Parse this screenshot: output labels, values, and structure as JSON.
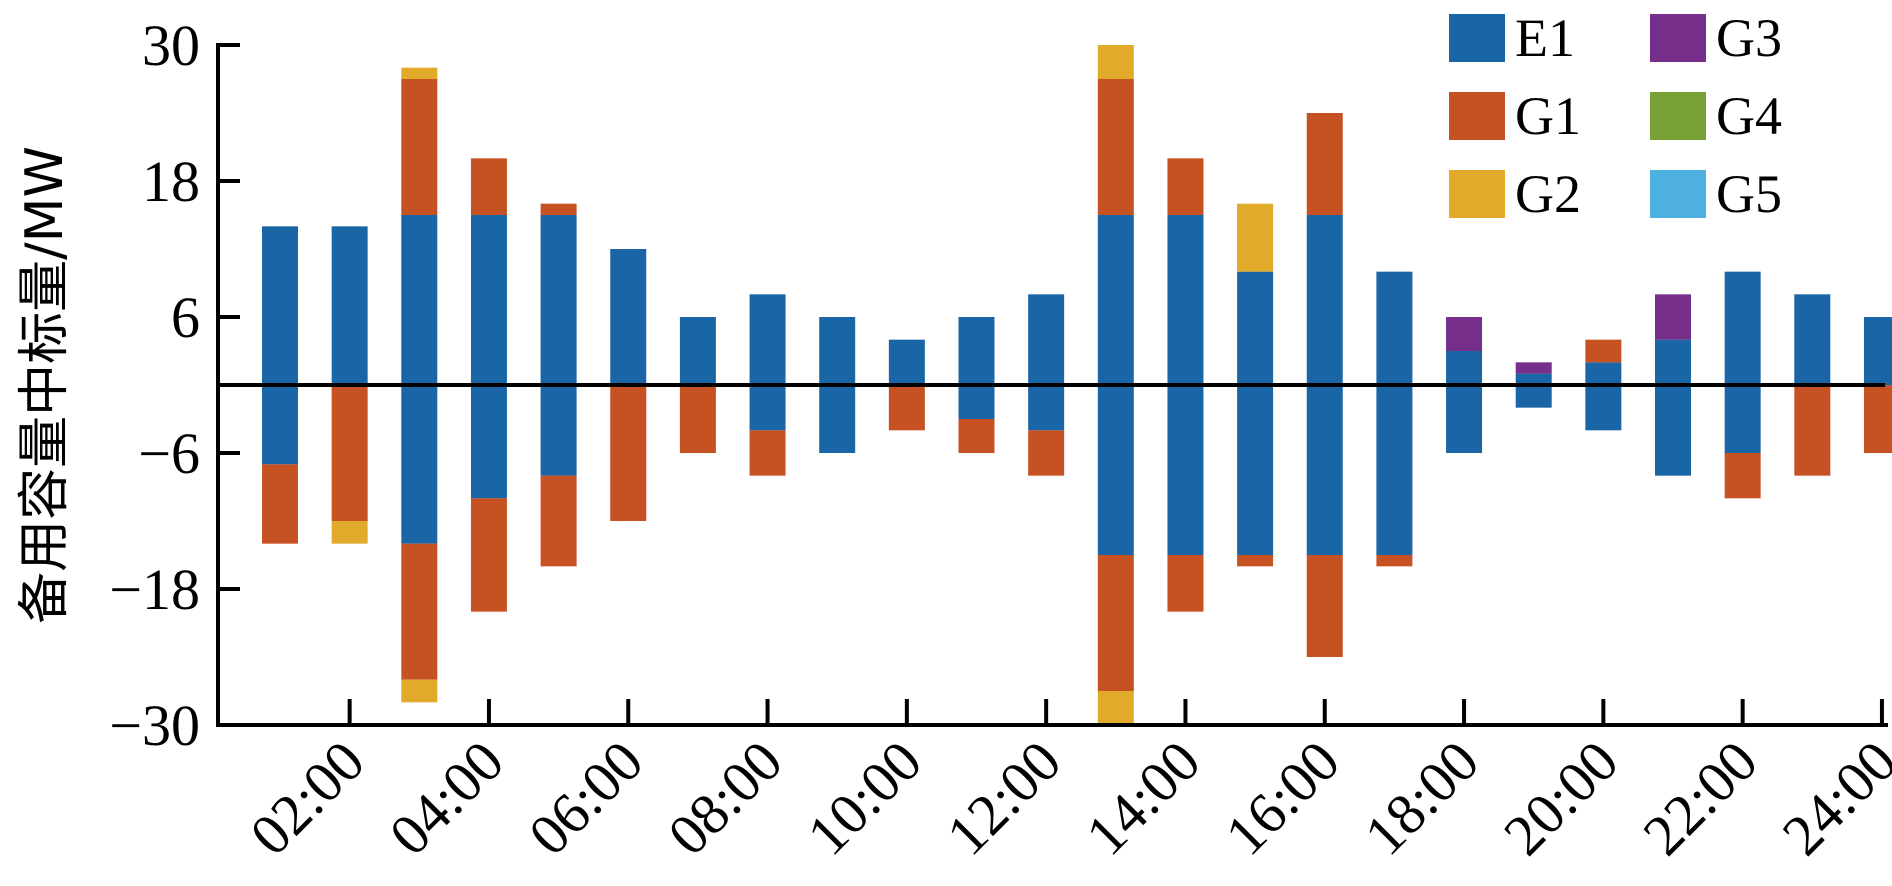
{
  "chart_data": {
    "type": "bar",
    "stacked": true,
    "title": "",
    "xlabel": "",
    "ylabel": "备用容量中标量/MW",
    "ylim": [
      -30,
      30
    ],
    "yticks": [
      30,
      18,
      6,
      -6,
      -18,
      -30
    ],
    "ytick_labels": [
      "30",
      "18",
      "6",
      "−6",
      "−18",
      "−30"
    ],
    "xtick_labels": [
      "02:00",
      "04:00",
      "06:00",
      "08:00",
      "10:00",
      "12:00",
      "14:00",
      "16:00",
      "18:00",
      "20:00",
      "22:00",
      "24:00"
    ],
    "categories": [
      "01:00",
      "02:00",
      "03:00",
      "04:00",
      "05:00",
      "06:00",
      "07:00",
      "08:00",
      "09:00",
      "10:00",
      "11:00",
      "12:00",
      "13:00",
      "14:00",
      "15:00",
      "16:00",
      "17:00",
      "18:00",
      "19:00",
      "20:00",
      "21:00",
      "22:00",
      "23:00",
      "24:00"
    ],
    "legend_position": "top-right",
    "grid": false,
    "series": [
      {
        "name": "E1",
        "color": "#1a65a6",
        "up": [
          14,
          14,
          15,
          15,
          15,
          12,
          6,
          8,
          6,
          4,
          6,
          8,
          15,
          15,
          10,
          15,
          10,
          3,
          1,
          2,
          4,
          10,
          8,
          6
        ],
        "down": [
          -7,
          0,
          -14,
          -10,
          -8,
          0,
          0,
          -4,
          -6,
          0,
          -3,
          -4,
          -15,
          -15,
          -15,
          -15,
          -15,
          -6,
          -2,
          -4,
          -8,
          -6,
          0,
          0
        ]
      },
      {
        "name": "G1",
        "color": "#c65122",
        "up": [
          0,
          0,
          12,
          5,
          1,
          0,
          0,
          0,
          0,
          0,
          0,
          0,
          12,
          5,
          0,
          9,
          0,
          0,
          0,
          2,
          0,
          0,
          0,
          0
        ],
        "down": [
          -7,
          -12,
          -12,
          -10,
          -8,
          -12,
          -6,
          -4,
          0,
          -4,
          -3,
          -4,
          -12,
          -5,
          -1,
          -9,
          -1,
          0,
          0,
          0,
          0,
          -4,
          -8,
          -6
        ]
      },
      {
        "name": "G2",
        "color": "#e2aa2b",
        "up": [
          0,
          0,
          1,
          0,
          0,
          0,
          0,
          0,
          0,
          0,
          0,
          0,
          3,
          0,
          6,
          0,
          0,
          0,
          0,
          0,
          0,
          0,
          0,
          0
        ],
        "down": [
          0,
          -2,
          -2,
          0,
          0,
          0,
          0,
          0,
          0,
          0,
          0,
          0,
          -3,
          0,
          0,
          0,
          0,
          0,
          0,
          0,
          0,
          0,
          0,
          0
        ]
      },
      {
        "name": "G3",
        "color": "#752e8a",
        "up": [
          0,
          0,
          0,
          0,
          0,
          0,
          0,
          0,
          0,
          0,
          0,
          0,
          0,
          0,
          0,
          0,
          0,
          3,
          1,
          0,
          4,
          0,
          0,
          0
        ],
        "down": [
          0,
          0,
          0,
          0,
          0,
          0,
          0,
          0,
          0,
          0,
          0,
          0,
          0,
          0,
          0,
          0,
          0,
          0,
          0,
          0,
          0,
          0,
          0,
          0
        ]
      },
      {
        "name": "G4",
        "color": "#77a135",
        "up": [
          0,
          0,
          0,
          0,
          0,
          0,
          0,
          0,
          0,
          0,
          0,
          0,
          0,
          0,
          0,
          0,
          0,
          0,
          0,
          0,
          0,
          0,
          0,
          0
        ],
        "down": [
          0,
          0,
          0,
          0,
          0,
          0,
          0,
          0,
          0,
          0,
          0,
          0,
          0,
          0,
          0,
          0,
          0,
          0,
          0,
          0,
          0,
          0,
          0,
          0
        ]
      },
      {
        "name": "G5",
        "color": "#4db0e0",
        "up": [
          0,
          0,
          0,
          0,
          0,
          0,
          0,
          0,
          0,
          0,
          0,
          0,
          0,
          0,
          0,
          0,
          0,
          0,
          0,
          0,
          0,
          0,
          0,
          0
        ],
        "down": [
          0,
          0,
          0,
          0,
          0,
          0,
          0,
          0,
          0,
          0,
          0,
          0,
          0,
          0,
          0,
          0,
          0,
          0,
          0,
          0,
          0,
          0,
          0,
          0
        ]
      }
    ]
  }
}
